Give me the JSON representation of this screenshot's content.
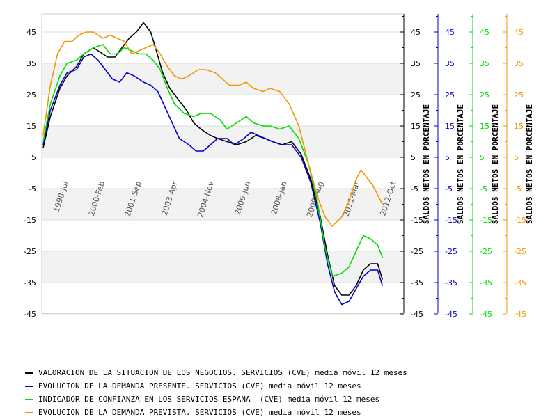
{
  "chart_data": {
    "type": "line",
    "title": "",
    "xlim": [
      1997.5,
      2012.8
    ],
    "ylim": [
      -45,
      50
    ],
    "grid": "horizontal bands",
    "x_ticks": [
      "1998-Jul",
      "2000-Feb",
      "2001-Sep",
      "2003-Apr",
      "2004-Nov",
      "2006-Jun",
      "2008-Jan",
      "2009-Aug",
      "2011-Mar",
      "2012-Oct"
    ],
    "y_ticks": [
      45,
      35,
      25,
      15,
      5,
      -5,
      -15,
      -25,
      -35,
      -45
    ],
    "axes": [
      {
        "label": "SALDOS NETOS EN PORCENTAJE",
        "color": "#000000"
      },
      {
        "label": "SALDOS NETOS EN PORCENTAJE",
        "color": "#0000cc"
      },
      {
        "label": "SALDOS NETOS EN PORCENTAJE",
        "color": "#00dd00"
      },
      {
        "label": "SALDOS NETOS EN PORCENTAJE",
        "color": "#ee9900"
      }
    ],
    "series": [
      {
        "name": "VALORACION DE LA SITUACION DE LOS NEGOCIOS. SERVICIOS (CVE) media móvil 12 meses",
        "color": "#000000",
        "x": [
          1997.5,
          1997.8,
          1998.2,
          1998.5,
          1998.9,
          1999.2,
          1999.6,
          2000.0,
          2000.2,
          2000.5,
          2000.8,
          2001.1,
          2001.4,
          2001.6,
          2001.7,
          2002.0,
          2002.2,
          2002.5,
          2002.8,
          2003.1,
          2003.5,
          2003.8,
          2004.1,
          2004.5,
          2004.8,
          2005.2,
          2005.6,
          2006.0,
          2006.4,
          2006.8,
          2007.1,
          2007.5,
          2007.9,
          2008.3,
          2008.7,
          2009.1,
          2009.4,
          2009.7,
          2010.0,
          2010.3,
          2010.6,
          2010.9,
          2011.2,
          2011.5,
          2011.7
        ],
        "y": [
          8,
          18,
          27,
          31,
          34,
          38,
          40,
          38,
          37,
          37,
          40,
          43,
          45,
          47,
          48,
          45,
          40,
          32,
          27,
          24,
          20,
          16,
          14,
          12,
          11,
          10,
          9,
          10,
          12,
          11,
          10,
          9,
          10,
          6,
          -2,
          -14,
          -26,
          -36,
          -39,
          -39,
          -36,
          -31,
          -29,
          -29,
          -34
        ]
      },
      {
        "name": "EVOLUCION DE LA DEMANDA PRESENTE. SERVICIOS (CVE) media móvil 12 meses",
        "color": "#0000cc",
        "x": [
          1997.5,
          1997.8,
          1998.2,
          1998.5,
          1998.9,
          1999.2,
          1999.5,
          1999.8,
          2000.1,
          2000.4,
          2000.7,
          2001.0,
          2001.3,
          2001.7,
          2002.0,
          2002.3,
          2002.6,
          2002.9,
          2003.2,
          2003.6,
          2003.9,
          2004.2,
          2004.5,
          2004.8,
          2005.2,
          2005.5,
          2005.9,
          2006.2,
          2006.5,
          2006.8,
          2007.1,
          2007.5,
          2007.9,
          2008.3,
          2008.7,
          2009.1,
          2009.4,
          2009.7,
          2010.0,
          2010.3,
          2010.6,
          2010.9,
          2011.2,
          2011.5,
          2011.7
        ],
        "y": [
          9,
          20,
          28,
          32,
          33,
          37,
          38,
          36,
          33,
          30,
          29,
          32,
          31,
          29,
          28,
          26,
          21,
          16,
          11,
          9,
          7,
          7,
          9,
          11,
          11,
          9,
          11,
          13,
          12,
          11,
          10,
          9,
          9,
          5,
          -3,
          -16,
          -29,
          -38,
          -42,
          -41,
          -37,
          -33,
          -31,
          -31,
          -36
        ]
      },
      {
        "name": "INDICADOR DE CONFIANZA EN LOS SERVICIOS ESPAÑA  (CVE) media móvil 12 meses",
        "color": "#00dd00",
        "x": [
          1997.5,
          1997.8,
          1998.2,
          1998.5,
          1998.9,
          1999.2,
          1999.6,
          2000.0,
          2000.3,
          2000.6,
          2000.9,
          2001.2,
          2001.5,
          2001.8,
          2002.1,
          2002.4,
          2002.7,
          2003.0,
          2003.4,
          2003.8,
          2004.1,
          2004.5,
          2004.9,
          2005.2,
          2005.6,
          2006.0,
          2006.3,
          2006.7,
          2007.0,
          2007.4,
          2007.8,
          2008.2,
          2008.6,
          2009.0,
          2009.3,
          2009.6,
          2010.0,
          2010.3,
          2010.6,
          2010.9,
          2011.2,
          2011.5,
          2011.7
        ],
        "y": [
          10,
          22,
          31,
          35,
          36,
          38,
          40,
          41,
          38,
          38,
          40,
          39,
          38,
          38,
          36,
          33,
          27,
          22,
          19,
          18,
          19,
          19,
          17,
          14,
          16,
          18,
          16,
          15,
          15,
          14,
          15,
          11,
          3,
          -10,
          -24,
          -33,
          -32,
          -30,
          -25,
          -20,
          -21,
          -23,
          -27
        ]
      },
      {
        "name": "EVOLUCION DE LA DEMANDA PREVISTA. SERVICIOS (CVE) media móvil 12 meses",
        "color": "#ee9900",
        "x": [
          1997.5,
          1997.8,
          1998.1,
          1998.4,
          1998.7,
          1999.0,
          1999.3,
          1999.6,
          2000.0,
          2000.3,
          2000.6,
          2000.9,
          2001.2,
          2001.5,
          2001.8,
          2002.1,
          2002.4,
          2002.7,
          2003.0,
          2003.3,
          2003.6,
          2004.0,
          2004.3,
          2004.7,
          2005.0,
          2005.3,
          2005.7,
          2006.0,
          2006.3,
          2006.7,
          2007.0,
          2007.4,
          2007.8,
          2008.2,
          2008.6,
          2009.0,
          2009.3,
          2009.6,
          2010.0,
          2010.3,
          2010.6,
          2010.8,
          2010.9,
          2011.1,
          2011.3,
          2011.5,
          2011.7
        ],
        "y": [
          12,
          28,
          38,
          42,
          42,
          44,
          45,
          45,
          43,
          44,
          43,
          42,
          38,
          39,
          40,
          41,
          38,
          34,
          31,
          30,
          31,
          33,
          33,
          32,
          30,
          28,
          28,
          29,
          27,
          26,
          27,
          26,
          22,
          15,
          3,
          -8,
          -14,
          -17,
          -14,
          -9,
          -2,
          1,
          0,
          -2,
          -4,
          -7,
          -10
        ]
      }
    ]
  }
}
